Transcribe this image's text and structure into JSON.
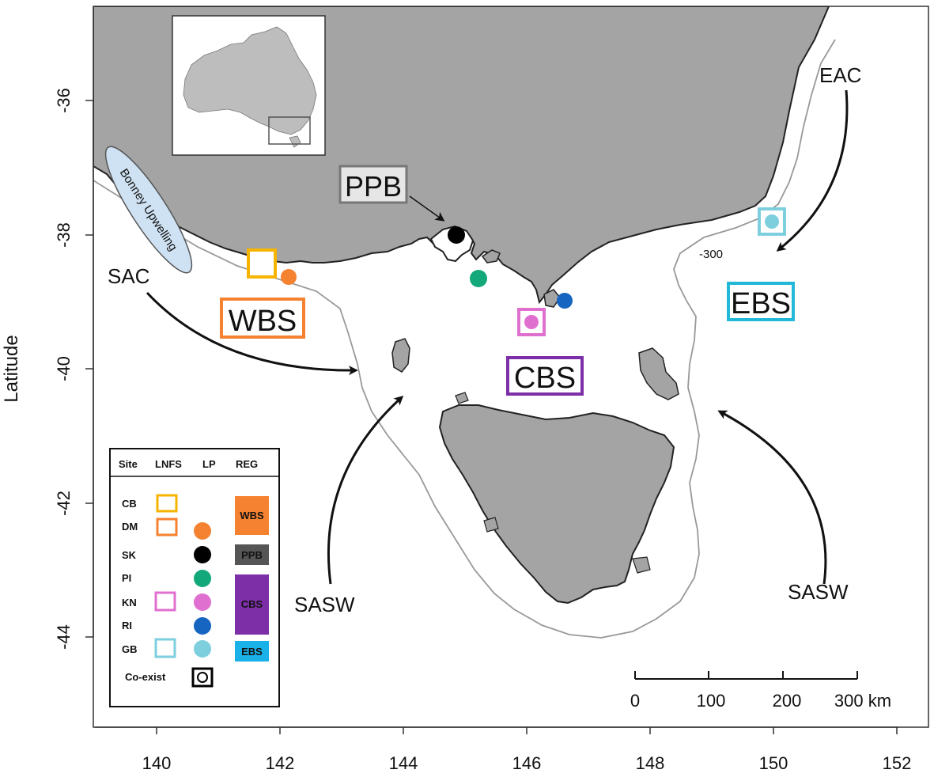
{
  "axes": {
    "y_title": "Latitude",
    "x_ticks": [
      "140",
      "142",
      "144",
      "146",
      "148",
      "150",
      "152"
    ],
    "y_ticks": [
      "-36",
      "-38",
      "-40",
      "-42",
      "-44"
    ]
  },
  "labels": {
    "ppb": "PPB",
    "wbs": "WBS",
    "cbs": "CBS",
    "ebs": "EBS",
    "sac": "SAC",
    "eac": "EAC",
    "sasw_west": "SASW",
    "sasw_east": "SASW",
    "bonney": "Bonney Upwelling",
    "contour": "-300"
  },
  "colors": {
    "land": "#a4a4a4",
    "contour": "#999999",
    "yellow": "#f6b400",
    "orange": "#f58231",
    "black": "#000000",
    "green": "#12a87a",
    "pink": "#e070d0",
    "blue": "#1665c0",
    "lightblue": "#7ecfde",
    "ppb_box": "#777777",
    "cbs_box": "#7d2fa8",
    "ebs_box": "#22b8d8",
    "wbs_fill": "#f58231",
    "ppb_fill": "#555555",
    "cbs_fill": "#7d2fa8",
    "ebs_fill": "#1ab0e8",
    "bonney_fill": "#cfe2f3"
  },
  "legend": {
    "headers": [
      "Site",
      "LNFS",
      "LP",
      "REG"
    ],
    "sites": [
      "CB",
      "DM",
      "SK",
      "PI",
      "KN",
      "RI",
      "GB"
    ],
    "coexist": "Co-exist",
    "regions": [
      "WBS",
      "PPB",
      "CBS",
      "EBS"
    ]
  },
  "scale": {
    "ticks": [
      "0",
      "100",
      "200",
      "300 km"
    ]
  }
}
